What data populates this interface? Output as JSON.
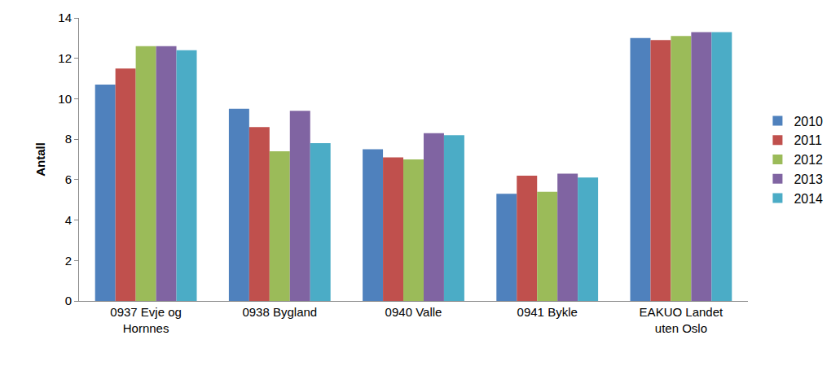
{
  "chart_data": {
    "type": "bar",
    "y_label": "Antall",
    "categories": [
      "0937 Evje og Hornnes",
      "0938 Bygland",
      "0940 Valle",
      "0941 Bykle",
      "EAKUO Landet uten Oslo"
    ],
    "series": [
      {
        "name": "2010",
        "color": "#4F81BD",
        "values": [
          10.7,
          9.5,
          7.5,
          5.3,
          13.0
        ]
      },
      {
        "name": "2011",
        "color": "#C0504D",
        "values": [
          11.5,
          8.6,
          7.1,
          6.2,
          12.9
        ]
      },
      {
        "name": "2012",
        "color": "#9BBB59",
        "values": [
          12.6,
          7.4,
          7.0,
          5.4,
          13.1
        ]
      },
      {
        "name": "2013",
        "color": "#8064A2",
        "values": [
          12.6,
          9.4,
          8.3,
          6.3,
          13.3
        ]
      },
      {
        "name": "2014",
        "color": "#4BACC6",
        "values": [
          12.4,
          7.8,
          8.2,
          6.1,
          13.3
        ]
      }
    ],
    "ylim": [
      0,
      14
    ],
    "yticks": [
      0,
      2,
      4,
      6,
      8,
      10,
      12,
      14
    ],
    "grid": false,
    "legend": "right"
  }
}
